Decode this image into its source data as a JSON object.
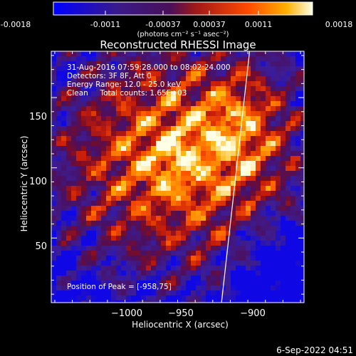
{
  "colorbar": {
    "tick_labels": [
      "-0.0018",
      "-0.0011",
      "-0.00037",
      "0.00037",
      "0.0011",
      "0.0018"
    ],
    "unit_label": "(photons cm⁻² s⁻¹ asec⁻²)"
  },
  "chart_data": {
    "type": "heatmap",
    "title": "Reconstructed RHESSI Image",
    "xlabel": "Heliocentric X (arcsec)",
    "ylabel": "Heliocentric Y (arcsec)",
    "xlim": [
      -1047,
      -903
    ],
    "ylim": [
      4,
      183
    ],
    "x_ticks": [
      -1000,
      -950,
      -900
    ],
    "x_tick_labels": [
      "−1000",
      "−950",
      "−900"
    ],
    "y_ticks": [
      50,
      100,
      150
    ],
    "y_tick_labels": [
      "50",
      "100",
      "150"
    ],
    "color_range": [
      -0.0018,
      0.0018
    ],
    "info_lines": [
      "31-Aug-2016 07:59:28.000 to 08:02:24.000",
      "Detectors: 3F 8F, Att 0",
      "Energy Range: 12.0 - 25.0 keV",
      "Clean     Total counts: 1.65E+03"
    ],
    "peak_label": "Position of Peak = [-958,75]",
    "peak": {
      "x": -958,
      "y": 75
    },
    "limb_line": [
      [
        -950,
        4
      ],
      [
        -934,
        183
      ]
    ]
  },
  "footer_date": "6-Sep-2022 04:51"
}
